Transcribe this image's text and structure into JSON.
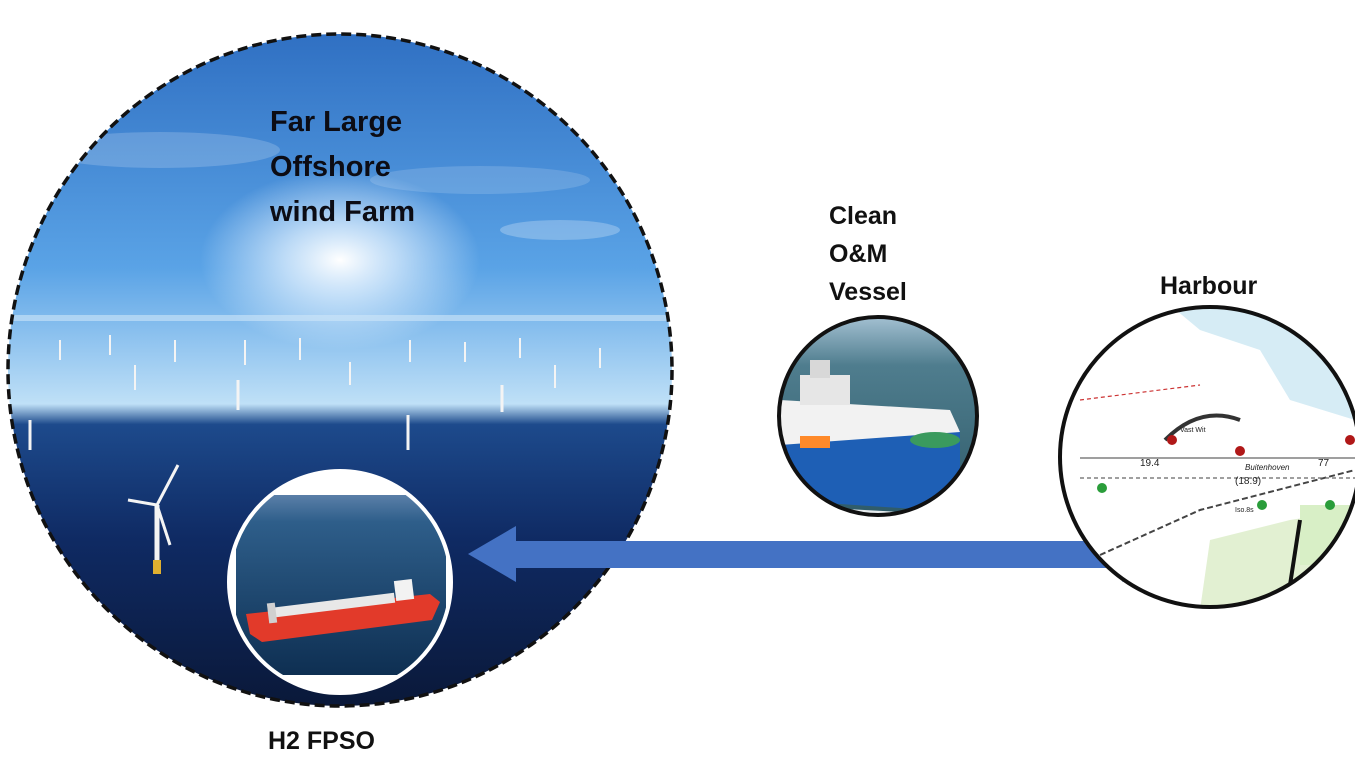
{
  "windfarm": {
    "title_lines": [
      "Far Large",
      "Offshore",
      "wind Farm"
    ]
  },
  "vessel": {
    "title_lines": [
      "Clean",
      "O&M",
      "Vessel"
    ]
  },
  "harbour": {
    "title": "Harbour",
    "chart_labels": [
      "19.4",
      "(18.9)",
      "77",
      "Buitenhoven",
      "Vast Wit",
      "Iso.8s"
    ]
  },
  "fpso": {
    "title": "H2 FPSO"
  },
  "colors": {
    "arrow": "#4472c4",
    "sea": "#0b1e4a",
    "sky": "#3f8fd8",
    "fpso_hull": "#e23a2a",
    "vessel_hull": "#1e5fb5"
  }
}
